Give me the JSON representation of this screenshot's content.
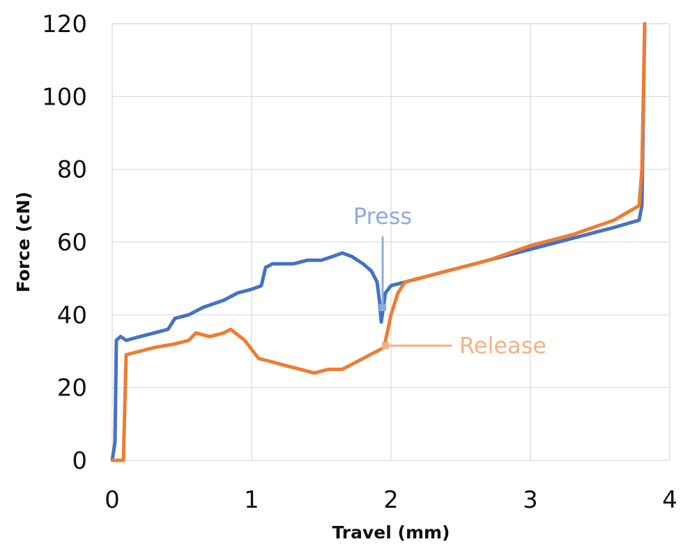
{
  "chart_data": {
    "type": "line",
    "xlabel": "Travel (mm)",
    "ylabel": "Force (cN)",
    "xlim": [
      0,
      4
    ],
    "ylim": [
      0,
      120
    ],
    "x_ticks": [
      "0",
      "1",
      "2",
      "3",
      "4"
    ],
    "y_ticks": [
      "0",
      "20",
      "40",
      "60",
      "80",
      "100",
      "120"
    ],
    "grid": true,
    "legend": "none",
    "series": [
      {
        "color": "#4472C4",
        "points": [
          [
            0.0,
            0
          ],
          [
            0.02,
            5
          ],
          [
            0.03,
            33
          ],
          [
            0.06,
            34
          ],
          [
            0.1,
            33
          ],
          [
            0.2,
            34
          ],
          [
            0.3,
            35
          ],
          [
            0.4,
            36
          ],
          [
            0.45,
            39
          ],
          [
            0.55,
            40
          ],
          [
            0.65,
            42
          ],
          [
            0.8,
            44
          ],
          [
            0.9,
            46
          ],
          [
            1.0,
            47
          ],
          [
            1.07,
            48
          ],
          [
            1.1,
            53
          ],
          [
            1.15,
            54
          ],
          [
            1.3,
            54
          ],
          [
            1.4,
            55
          ],
          [
            1.5,
            55
          ],
          [
            1.58,
            56
          ],
          [
            1.65,
            57
          ],
          [
            1.72,
            56
          ],
          [
            1.8,
            54
          ],
          [
            1.86,
            52
          ],
          [
            1.9,
            49
          ],
          [
            1.92,
            43
          ],
          [
            1.93,
            38
          ],
          [
            1.96,
            46
          ],
          [
            2.0,
            48
          ],
          [
            2.1,
            49
          ],
          [
            2.3,
            51
          ],
          [
            2.5,
            53
          ],
          [
            2.7,
            55
          ],
          [
            3.0,
            58
          ],
          [
            3.3,
            61
          ],
          [
            3.6,
            64
          ],
          [
            3.78,
            66
          ],
          [
            3.8,
            70
          ],
          [
            3.82,
            120
          ]
        ]
      },
      {
        "color": "#ED7D31",
        "points": [
          [
            0.0,
            0
          ],
          [
            0.08,
            0
          ],
          [
            0.1,
            29
          ],
          [
            0.2,
            30
          ],
          [
            0.3,
            31
          ],
          [
            0.45,
            32
          ],
          [
            0.55,
            33
          ],
          [
            0.6,
            35
          ],
          [
            0.7,
            34
          ],
          [
            0.8,
            35
          ],
          [
            0.85,
            36
          ],
          [
            0.95,
            33
          ],
          [
            1.05,
            28
          ],
          [
            1.15,
            27
          ],
          [
            1.25,
            26
          ],
          [
            1.35,
            25
          ],
          [
            1.45,
            24
          ],
          [
            1.55,
            25
          ],
          [
            1.65,
            25
          ],
          [
            1.75,
            27
          ],
          [
            1.85,
            29
          ],
          [
            1.95,
            31
          ],
          [
            2.0,
            40
          ],
          [
            2.05,
            46
          ],
          [
            2.1,
            49
          ],
          [
            2.3,
            51
          ],
          [
            2.5,
            53
          ],
          [
            2.7,
            55
          ],
          [
            3.0,
            59
          ],
          [
            3.3,
            62
          ],
          [
            3.6,
            66
          ],
          [
            3.78,
            70
          ],
          [
            3.8,
            80
          ],
          [
            3.82,
            120
          ]
        ]
      }
    ],
    "annotations": [
      {
        "text": "Press",
        "color": "#8FAADC",
        "x": 1.94,
        "y": 42
      },
      {
        "text": "Release",
        "color": "#F4B183",
        "x": 1.96,
        "y": 31.5
      }
    ]
  }
}
